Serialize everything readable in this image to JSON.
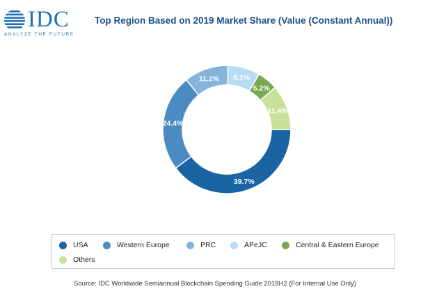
{
  "header": {
    "logo_text": "IDC",
    "logo_tagline": "ANALYZE THE FUTURE",
    "title": "Top Region Based on 2019 Market Share (Value (Constant Annual))"
  },
  "chart_data": {
    "type": "pie",
    "donut": true,
    "title": "Top Region Based on 2019 Market Share (Value (Constant Annual))",
    "categories": [
      "USA",
      "Western Europe",
      "PRC",
      "APeJC",
      "Central & Eastern Europe",
      "Others"
    ],
    "values": [
      39.7,
      24.4,
      11.2,
      8.1,
      5.2,
      11.4
    ],
    "labels": [
      "39.7%",
      "24.4%",
      "11.2%",
      "8.1%",
      "5.2%",
      "11.4%"
    ],
    "colors": [
      "#1b64a3",
      "#4a8cc2",
      "#85b3dc",
      "#b7dcf7",
      "#79a851",
      "#c9e09a"
    ],
    "legend_position": "bottom"
  },
  "legend": [
    {
      "label": "USA",
      "color": "#1b64a3"
    },
    {
      "label": "Western Europe",
      "color": "#4a8cc2"
    },
    {
      "label": "PRC",
      "color": "#85b3dc"
    },
    {
      "label": "APeJC",
      "color": "#b7dcf7"
    },
    {
      "label": "Central & Eastern Europe",
      "color": "#79a851"
    },
    {
      "label": "Others",
      "color": "#c9e09a"
    }
  ],
  "source": "Source: IDC Worldwide Semiannual Blockchain Spending Guide 2018H2 (For Internal Use Only)"
}
